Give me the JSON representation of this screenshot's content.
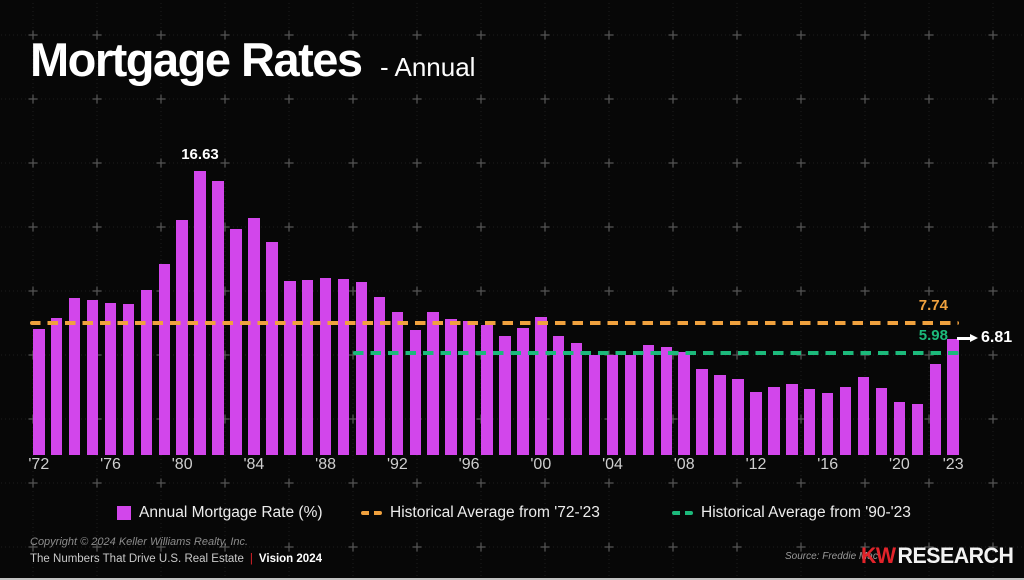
{
  "header": {
    "title": "Mortgage Rates",
    "subtitle": "- Annual"
  },
  "chart_data": {
    "type": "bar",
    "title": "Mortgage Rates - Annual",
    "ylabel": "Annual Mortgage Rate (%)",
    "ylim": [
      0,
      18
    ],
    "grid": "faint dotted 64px grid with plus crosses",
    "bar_color": "#d246eb",
    "years": [
      1972,
      1973,
      1974,
      1975,
      1976,
      1977,
      1978,
      1979,
      1980,
      1981,
      1982,
      1983,
      1984,
      1985,
      1986,
      1987,
      1988,
      1989,
      1990,
      1991,
      1992,
      1993,
      1994,
      1995,
      1996,
      1997,
      1998,
      1999,
      2000,
      2001,
      2002,
      2003,
      2004,
      2005,
      2006,
      2007,
      2008,
      2009,
      2010,
      2011,
      2012,
      2013,
      2014,
      2015,
      2016,
      2017,
      2018,
      2019,
      2020,
      2021,
      2022,
      2023
    ],
    "values": [
      7.38,
      8.04,
      9.19,
      9.05,
      8.87,
      8.85,
      9.64,
      11.2,
      13.74,
      16.63,
      16.04,
      13.24,
      13.88,
      12.43,
      10.19,
      10.21,
      10.34,
      10.32,
      10.13,
      9.25,
      8.39,
      7.31,
      8.38,
      7.93,
      7.81,
      7.6,
      6.94,
      7.44,
      8.05,
      6.97,
      6.54,
      5.83,
      5.84,
      5.87,
      6.41,
      6.34,
      6.03,
      5.04,
      4.69,
      4.45,
      3.66,
      3.98,
      4.17,
      3.85,
      3.65,
      3.99,
      4.54,
      3.94,
      3.1,
      2.96,
      5.34,
      6.81
    ],
    "x_tick_labels": [
      "'72",
      "'76",
      "'80",
      "'84",
      "'88",
      "'92",
      "'96",
      "'00",
      "'04",
      "'08",
      "'12",
      "'16",
      "'20",
      "'23"
    ],
    "peak_label": {
      "year": 1981,
      "value": "16.63"
    },
    "last_label": {
      "year": 2023,
      "value": "6.81"
    },
    "reference_lines": [
      {
        "name": "Historical Average from '72-'23",
        "label": "7.74",
        "value": 7.74,
        "color": "#f0a13e",
        "start_year": 1972
      },
      {
        "name": "Historical Average from '90-'23",
        "label": "5.98",
        "value": 5.98,
        "color": "#1cb97b",
        "start_year": 1990
      }
    ],
    "legend_position": "bottom"
  },
  "legend": [
    {
      "swatch": "square",
      "color": "#d246eb",
      "label": "Annual Mortgage Rate (%)"
    },
    {
      "swatch": "dashes",
      "color": "#f0a13e",
      "label": "Historical Average from '72-'23"
    },
    {
      "swatch": "dashes",
      "color": "#1cb97b",
      "label": "Historical Average from '90-'23"
    }
  ],
  "footer": {
    "copyright": "Copyright © 2024 Keller Williams Realty, Inc.",
    "tagline": "The Numbers That Drive U.S. Real Estate",
    "divider": "|",
    "vision": "Vision 2024",
    "source": "Source: Freddie Mac",
    "logo_kw": "KW",
    "logo_research": "RESEARCH"
  },
  "colors": {
    "background": "#070707",
    "bar": "#d246eb",
    "avg_72_23": "#f0a13e",
    "avg_90_23": "#1cb97b",
    "accent_red": "#e2232a"
  }
}
